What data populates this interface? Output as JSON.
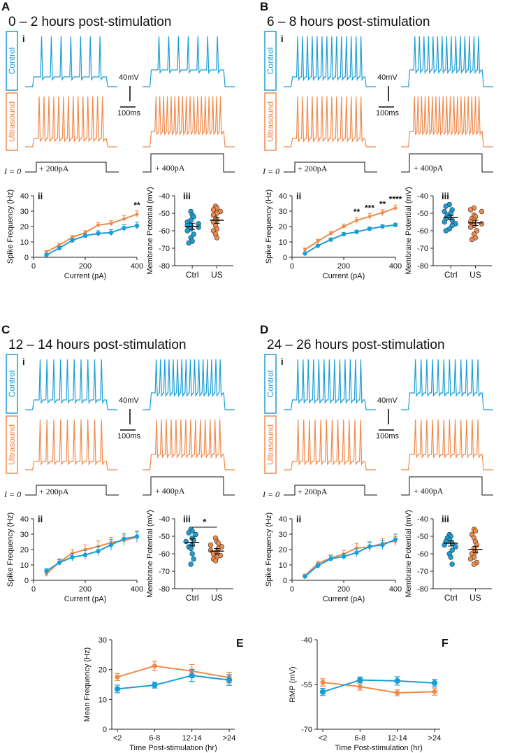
{
  "colors": {
    "control": "#1a9ed6",
    "ultrasound": "#f08a4b",
    "axis": "#222222"
  },
  "panels": [
    {
      "letter": "A",
      "title": "0 – 2 hours post-stimulation",
      "trace_label": "i",
      "ctrl_label": "Control",
      "us_label": "Ultrasound",
      "scale_mv": "40mV",
      "scale_ms": "100ms",
      "step_i0": "I = 0",
      "step1": "+ 200pA",
      "step2": "+ 400pA",
      "spikes": {
        "ctrl200": 7,
        "ctrl400": 7,
        "us200": 14,
        "us400": 18
      },
      "freq": {
        "label": "ii",
        "stars": "**",
        "ylabel": "Spike Frequency (Hz)",
        "xlabel": "Current (pA)"
      },
      "rmp": {
        "label": "iii",
        "sig": "",
        "ylabel": "Membrane Potential (mV)",
        "cat1": "Ctrl",
        "cat2": "US"
      }
    },
    {
      "letter": "B",
      "title": "6 – 8 hours post-stimulation",
      "trace_label": "i",
      "ctrl_label": "Control",
      "us_label": "Ultrasound",
      "scale_mv": "40mV",
      "scale_ms": "100ms",
      "step_i0": "I = 0",
      "step1": "+ 200pA",
      "step2": "+ 400pA",
      "spikes": {
        "ctrl200": 14,
        "ctrl400": 15,
        "us200": 14,
        "us400": 19
      },
      "freq": {
        "label": "ii",
        "stars": "",
        "ylabel": "Spike Frequency (Hz)",
        "xlabel": "Current (pA)"
      },
      "rmp": {
        "label": "iii",
        "sig": "",
        "ylabel": "Membrane Potential (mV)",
        "cat1": "Ctrl",
        "cat2": "US"
      }
    },
    {
      "letter": "C",
      "title": "12 – 14 hours post-stimulation",
      "trace_label": "i",
      "ctrl_label": "Control",
      "us_label": "Ultrasound",
      "scale_mv": "40mV",
      "scale_ms": "100ms",
      "step_i0": "I = 0",
      "step1": "+ 200pA",
      "step2": "+ 400pA",
      "spikes": {
        "ctrl200": 10,
        "ctrl400": 16,
        "us200": 10,
        "us400": 14
      },
      "freq": {
        "label": "ii",
        "stars": "",
        "ylabel": "Spike Frequency (Hz)",
        "xlabel": "Current (pA)"
      },
      "rmp": {
        "label": "iii",
        "sig": "*",
        "ylabel": "Membrane Potential (mV)",
        "cat1": "Ctrl",
        "cat2": "US"
      }
    },
    {
      "letter": "D",
      "title": "24 – 26 hours post-stimulation",
      "trace_label": "i",
      "ctrl_label": "Control",
      "us_label": "Ultrasound",
      "scale_mv": "40mV",
      "scale_ms": "100ms",
      "step_i0": "I = 0",
      "step1": "+ 200pA",
      "step2": "+ 400pA",
      "spikes": {
        "ctrl200": 13,
        "ctrl400": 12,
        "us200": 12,
        "us400": 12
      },
      "freq": {
        "label": "ii",
        "stars": "",
        "ylabel": "Spike Frequency (Hz)",
        "xlabel": "Current (pA)"
      },
      "rmp": {
        "label": "iii",
        "sig": "",
        "ylabel": "Membrane Potential (mV)",
        "cat1": "Ctrl",
        "cat2": "US"
      }
    }
  ],
  "bottom": [
    {
      "letter": "E",
      "ylabel": "Mean Frequency (Hz)",
      "xlabel": "Time Post-stimulation (hr)"
    },
    {
      "letter": "F",
      "ylabel": "RMP (mV)",
      "xlabel": "Time Post-stimulation (hr)"
    }
  ],
  "chart_data": [
    {
      "id": "A-ii",
      "type": "line",
      "title": "",
      "xlabel": "Current (pA)",
      "ylabel": "Spike Frequency (Hz)",
      "xlim": [
        0,
        400
      ],
      "ylim": [
        0,
        40
      ],
      "xticks": [
        0,
        200,
        400
      ],
      "yticks": [
        0,
        10,
        20,
        30,
        40
      ],
      "x": [
        50,
        100,
        150,
        200,
        250,
        300,
        350,
        400
      ],
      "series": [
        {
          "name": "Control",
          "values": [
            1.5,
            6,
            11,
            14,
            15.5,
            16,
            19,
            20.5
          ],
          "err": [
            0.8,
            1,
            1.2,
            1.5,
            1.8,
            2,
            2.2,
            2.4
          ]
        },
        {
          "name": "Ultrasound",
          "values": [
            3.5,
            8,
            13,
            16,
            21,
            22,
            25,
            28
          ],
          "err": [
            0.8,
            1,
            1.2,
            1.4,
            1.6,
            1.8,
            2,
            2.2
          ]
        }
      ],
      "annotations": [
        {
          "x": 400,
          "text": "**"
        }
      ]
    },
    {
      "id": "A-iii",
      "type": "scatter",
      "xlabel": "",
      "ylabel": "Membrane Potential (mV)",
      "categories": [
        "Ctrl",
        "US"
      ],
      "ylim": [
        -80,
        -40
      ],
      "yticks": [
        -80,
        -70,
        -60,
        -50,
        -40
      ],
      "groups": [
        {
          "name": "Ctrl",
          "mean": -57.5,
          "sem": 1.8,
          "points": [
            -49,
            -51,
            -52,
            -54,
            -55,
            -56,
            -57,
            -57,
            -58,
            -59,
            -60,
            -62,
            -64,
            -66,
            -67
          ]
        },
        {
          "name": "US",
          "mean": -54,
          "sem": 1.8,
          "points": [
            -46,
            -47,
            -48,
            -49,
            -50,
            -51,
            -53,
            -54,
            -55,
            -57,
            -59,
            -60,
            -62,
            -64
          ]
        }
      ]
    },
    {
      "id": "B-ii",
      "type": "line",
      "xlabel": "Current (pA)",
      "ylabel": "Spike Frequency (Hz)",
      "xlim": [
        0,
        400
      ],
      "ylim": [
        0,
        40
      ],
      "xticks": [
        0,
        200,
        400
      ],
      "yticks": [
        0,
        10,
        20,
        30,
        40
      ],
      "x": [
        50,
        100,
        150,
        200,
        250,
        300,
        350,
        400
      ],
      "series": [
        {
          "name": "Control",
          "values": [
            2.5,
            7.5,
            11.5,
            15,
            16.5,
            18.5,
            20,
            21
          ],
          "err": [
            0.6,
            0.8,
            1,
            1,
            1.1,
            1.2,
            1.2,
            1.2
          ]
        },
        {
          "name": "Ultrasound",
          "values": [
            5,
            10.5,
            15.5,
            20,
            24,
            26.5,
            29,
            32
          ],
          "err": [
            1,
            1.2,
            1.4,
            1.6,
            1.8,
            2,
            2,
            2
          ]
        }
      ],
      "annotations": [
        {
          "x": 250,
          "text": "**"
        },
        {
          "x": 300,
          "text": "***"
        },
        {
          "x": 350,
          "text": "**"
        },
        {
          "x": 400,
          "text": "****"
        }
      ]
    },
    {
      "id": "B-iii",
      "type": "scatter",
      "ylabel": "Membrane Potential (mV)",
      "categories": [
        "Ctrl",
        "US"
      ],
      "ylim": [
        -80,
        -40
      ],
      "yticks": [
        -80,
        -70,
        -60,
        -50,
        -40
      ],
      "groups": [
        {
          "name": "Ctrl",
          "mean": -52.5,
          "sem": 1.2,
          "points": [
            -45,
            -46,
            -48,
            -49,
            -50,
            -51,
            -52,
            -53,
            -54,
            -55,
            -56,
            -57,
            -59,
            -60
          ]
        },
        {
          "name": "US",
          "mean": -55.5,
          "sem": 1.5,
          "points": [
            -47,
            -48,
            -49,
            -51,
            -52,
            -53,
            -54,
            -55,
            -56,
            -57,
            -58,
            -60,
            -62,
            -64,
            -65
          ]
        }
      ]
    },
    {
      "id": "C-ii",
      "type": "line",
      "xlabel": "Current (pA)",
      "ylabel": "Spike Frequency (Hz)",
      "xlim": [
        0,
        400
      ],
      "ylim": [
        0,
        40
      ],
      "xticks": [
        0,
        200,
        400
      ],
      "yticks": [
        0,
        10,
        20,
        30,
        40
      ],
      "x": [
        50,
        100,
        150,
        200,
        250,
        300,
        350,
        400
      ],
      "series": [
        {
          "name": "Control",
          "values": [
            6,
            11.5,
            15,
            16.5,
            19,
            23,
            27,
            28.5
          ],
          "err": [
            1.5,
            2,
            2.5,
            3,
            3,
            3.5,
            3.5,
            3.5
          ]
        },
        {
          "name": "Ultrasound",
          "values": [
            4,
            12,
            17.5,
            20,
            22,
            24.5,
            26,
            28
          ],
          "err": [
            1.5,
            2,
            2.5,
            3,
            3.5,
            3.5,
            3.5,
            3.5
          ]
        }
      ],
      "annotations": []
    },
    {
      "id": "C-iii",
      "type": "scatter",
      "ylabel": "Membrane Potential (mV)",
      "categories": [
        "Ctrl",
        "US"
      ],
      "ylim": [
        -80,
        -40
      ],
      "yticks": [
        -80,
        -70,
        -60,
        -50,
        -40
      ],
      "significance": "*",
      "groups": [
        {
          "name": "Ctrl",
          "mean": -53.5,
          "sem": 2,
          "points": [
            -46,
            -47,
            -48,
            -49,
            -51,
            -52,
            -53,
            -55,
            -56,
            -57,
            -60,
            -63,
            -66
          ]
        },
        {
          "name": "US",
          "mean": -58.5,
          "sem": 1.5,
          "points": [
            -51,
            -53,
            -54,
            -55,
            -56,
            -57,
            -58,
            -59,
            -60,
            -61,
            -62,
            -63,
            -64
          ]
        }
      ]
    },
    {
      "id": "D-ii",
      "type": "line",
      "xlabel": "Current (pA)",
      "ylabel": "Spike Frequency (Hz)",
      "xlim": [
        0,
        400
      ],
      "ylim": [
        0,
        40
      ],
      "xticks": [
        0,
        200,
        400
      ],
      "yticks": [
        0,
        10,
        20,
        30,
        40
      ],
      "x": [
        50,
        100,
        150,
        200,
        250,
        300,
        350,
        400
      ],
      "series": [
        {
          "name": "Control",
          "values": [
            2.5,
            9.5,
            14,
            15.5,
            18,
            22,
            23,
            26.5
          ],
          "err": [
            1,
            1.5,
            2,
            2,
            2.5,
            3,
            3,
            3.5
          ]
        },
        {
          "name": "Ultrasound",
          "values": [
            3,
            11,
            14.5,
            17,
            21,
            21.5,
            24,
            25.5
          ],
          "err": [
            1,
            1.5,
            2,
            2.5,
            3,
            3,
            3,
            3
          ]
        }
      ],
      "annotations": []
    },
    {
      "id": "D-iii",
      "type": "scatter",
      "ylabel": "Membrane Potential (mV)",
      "categories": [
        "Ctrl",
        "US"
      ],
      "ylim": [
        -80,
        -40
      ],
      "yticks": [
        -80,
        -70,
        -60,
        -50,
        -40
      ],
      "groups": [
        {
          "name": "Ctrl",
          "mean": -54,
          "sem": 1.6,
          "points": [
            -49,
            -50,
            -51,
            -52,
            -53,
            -54,
            -55,
            -56,
            -58,
            -60,
            -62,
            -66
          ]
        },
        {
          "name": "US",
          "mean": -57.5,
          "sem": 1.8,
          "points": [
            -46,
            -47,
            -49,
            -51,
            -53,
            -55,
            -57,
            -59,
            -60,
            -62,
            -63,
            -65,
            -66
          ]
        }
      ]
    },
    {
      "id": "E",
      "type": "line",
      "xlabel": "Time Post-stimulation (hr)",
      "ylabel": "Mean Frequency (Hz)",
      "categories": [
        "<2",
        "6-8",
        "12-14",
        ">24"
      ],
      "ylim": [
        0,
        30
      ],
      "yticks": [
        0,
        10,
        20,
        30
      ],
      "series": [
        {
          "name": "Control",
          "values": [
            13.5,
            14.8,
            18,
            16.5
          ],
          "err": [
            1.3,
            1,
            2,
            1.8
          ]
        },
        {
          "name": "Ultrasound",
          "values": [
            17.5,
            21.2,
            19.5,
            17.3
          ],
          "err": [
            1.2,
            1.6,
            2.2,
            1.8
          ]
        }
      ]
    },
    {
      "id": "F",
      "type": "line",
      "xlabel": "Time Post-stimulation (hr)",
      "ylabel": "RMP (mV)",
      "categories": [
        "<2",
        "6-8",
        "12-14",
        ">24"
      ],
      "ylim": [
        -70,
        -40
      ],
      "yticks": [
        -70,
        -55,
        -40
      ],
      "series": [
        {
          "name": "Control",
          "values": [
            -57.5,
            -53.5,
            -53.8,
            -54.5
          ],
          "err": [
            1.2,
            1,
            1.4,
            1.2
          ]
        },
        {
          "name": "Ultrasound",
          "values": [
            -54.3,
            -55.7,
            -57.8,
            -57.4
          ],
          "err": [
            1.2,
            1.2,
            1,
            1.2
          ]
        }
      ]
    }
  ]
}
